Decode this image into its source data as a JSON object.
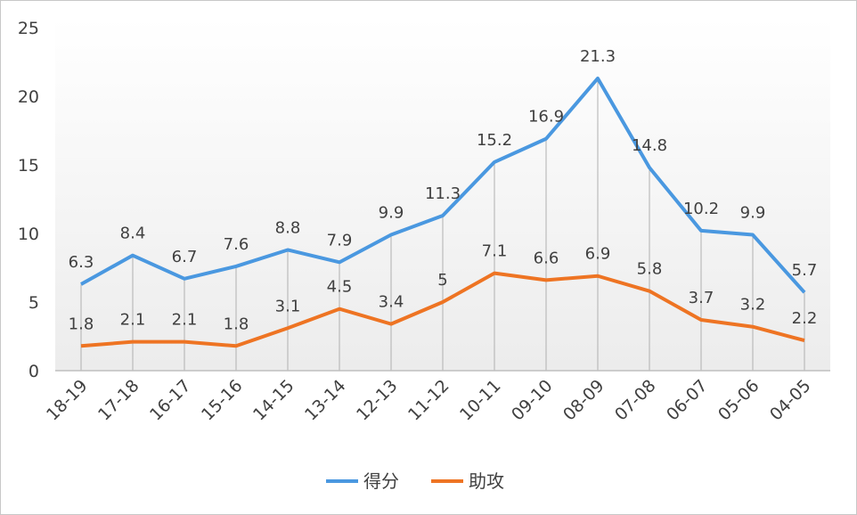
{
  "chart_data": {
    "type": "line",
    "categories": [
      "18-19",
      "17-18",
      "16-17",
      "15-16",
      "14-15",
      "13-14",
      "12-13",
      "11-12",
      "10-11",
      "09-10",
      "08-09",
      "07-08",
      "06-07",
      "05-06",
      "04-05"
    ],
    "series": [
      {
        "name": "得分",
        "color": "#4a98e0",
        "values": [
          6.3,
          8.4,
          6.7,
          7.6,
          8.8,
          7.9,
          9.9,
          11.3,
          15.2,
          16.9,
          21.3,
          14.8,
          10.2,
          9.9,
          5.7
        ]
      },
      {
        "name": "助攻",
        "color": "#ee7423",
        "values": [
          1.8,
          2.1,
          2.1,
          1.8,
          3.1,
          4.5,
          3.4,
          5,
          7.1,
          6.6,
          6.9,
          5.8,
          3.7,
          3.2,
          2.2
        ]
      }
    ],
    "ylim": [
      0,
      25
    ],
    "yticks": [
      0,
      5,
      10,
      15,
      20,
      25
    ],
    "data_labels": true,
    "drop_lines": true,
    "legend_position": "bottom"
  }
}
